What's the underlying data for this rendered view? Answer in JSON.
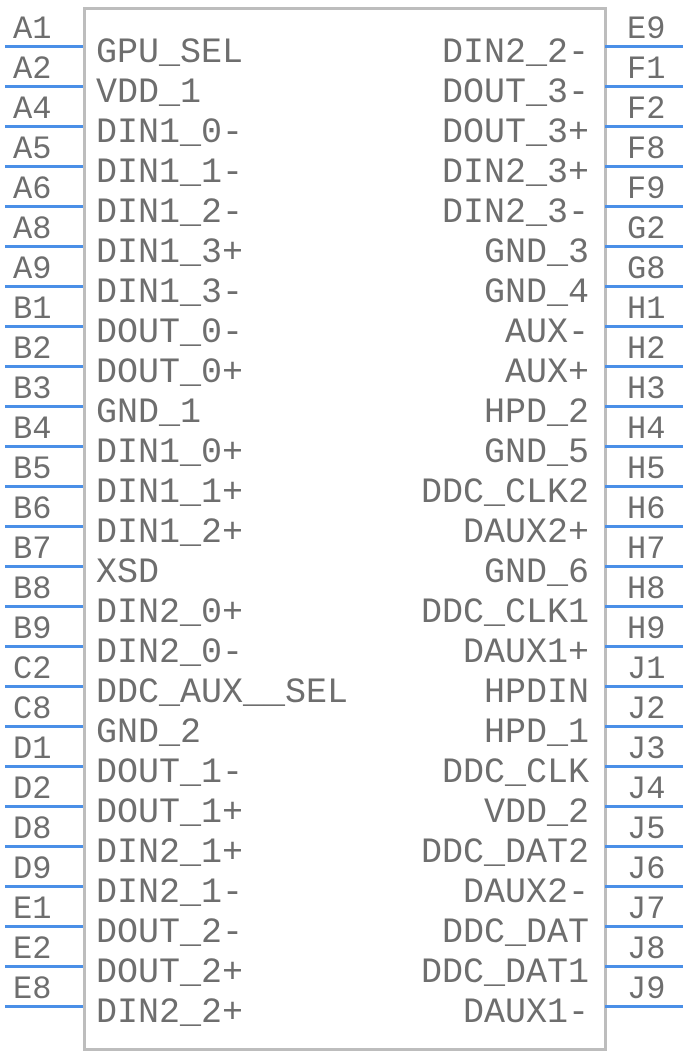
{
  "colors": {
    "pin": "#4a8fe7",
    "outline": "#bdbdbd",
    "text": "#6e6e6e"
  },
  "left_pins": [
    {
      "pin": "A1",
      "signal": "GPU_SEL"
    },
    {
      "pin": "A2",
      "signal": "VDD_1"
    },
    {
      "pin": "A4",
      "signal": "DIN1_0-"
    },
    {
      "pin": "A5",
      "signal": "DIN1_1-"
    },
    {
      "pin": "A6",
      "signal": "DIN1_2-"
    },
    {
      "pin": "A8",
      "signal": "DIN1_3+"
    },
    {
      "pin": "A9",
      "signal": "DIN1_3-"
    },
    {
      "pin": "B1",
      "signal": "DOUT_0-"
    },
    {
      "pin": "B2",
      "signal": "DOUT_0+"
    },
    {
      "pin": "B3",
      "signal": "GND_1"
    },
    {
      "pin": "B4",
      "signal": "DIN1_0+"
    },
    {
      "pin": "B5",
      "signal": "DIN1_1+"
    },
    {
      "pin": "B6",
      "signal": "DIN1_2+"
    },
    {
      "pin": "B7",
      "signal": "XSD"
    },
    {
      "pin": "B8",
      "signal": "DIN2_0+"
    },
    {
      "pin": "B9",
      "signal": "DIN2_0-"
    },
    {
      "pin": "C2",
      "signal": "DDC_AUX__SEL"
    },
    {
      "pin": "C8",
      "signal": "GND_2"
    },
    {
      "pin": "D1",
      "signal": "DOUT_1-"
    },
    {
      "pin": "D2",
      "signal": "DOUT_1+"
    },
    {
      "pin": "D8",
      "signal": "DIN2_1+"
    },
    {
      "pin": "D9",
      "signal": "DIN2_1-"
    },
    {
      "pin": "E1",
      "signal": "DOUT_2-"
    },
    {
      "pin": "E2",
      "signal": "DOUT_2+"
    },
    {
      "pin": "E8",
      "signal": "DIN2_2+"
    }
  ],
  "right_pins": [
    {
      "pin": "E9",
      "signal": "DIN2_2-"
    },
    {
      "pin": "F1",
      "signal": "DOUT_3-"
    },
    {
      "pin": "F2",
      "signal": "DOUT_3+"
    },
    {
      "pin": "F8",
      "signal": "DIN2_3+"
    },
    {
      "pin": "F9",
      "signal": "DIN2_3-"
    },
    {
      "pin": "G2",
      "signal": "GND_3"
    },
    {
      "pin": "G8",
      "signal": "GND_4"
    },
    {
      "pin": "H1",
      "signal": "AUX-"
    },
    {
      "pin": "H2",
      "signal": "AUX+"
    },
    {
      "pin": "H3",
      "signal": "HPD_2"
    },
    {
      "pin": "H4",
      "signal": "GND_5"
    },
    {
      "pin": "H5",
      "signal": "DDC_CLK2"
    },
    {
      "pin": "H6",
      "signal": "DAUX2+"
    },
    {
      "pin": "H7",
      "signal": "GND_6"
    },
    {
      "pin": "H8",
      "signal": "DDC_CLK1"
    },
    {
      "pin": "H9",
      "signal": "DAUX1+"
    },
    {
      "pin": "J1",
      "signal": "HPDIN"
    },
    {
      "pin": "J2",
      "signal": "HPD_1"
    },
    {
      "pin": "J3",
      "signal": "DDC_CLK"
    },
    {
      "pin": "J4",
      "signal": "VDD_2"
    },
    {
      "pin": "J5",
      "signal": "DDC_DAT2"
    },
    {
      "pin": "J6",
      "signal": "DAUX2-"
    },
    {
      "pin": "J7",
      "signal": "DDC_DAT"
    },
    {
      "pin": "J8",
      "signal": "DDC_DAT1"
    },
    {
      "pin": "J9",
      "signal": "DAUX1-"
    }
  ]
}
